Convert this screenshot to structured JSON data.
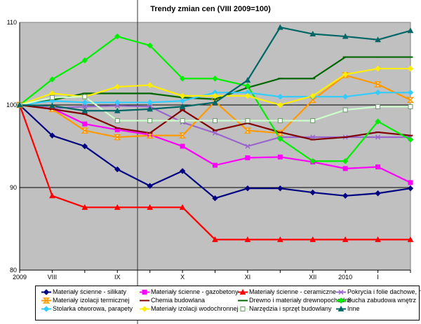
{
  "chart_data": {
    "type": "line",
    "title": "Trendy zmian cen (VIII 2009=100)",
    "xlabel": "",
    "ylabel": "",
    "ylim": [
      80,
      110
    ],
    "yticks": [
      80,
      90,
      100,
      110
    ],
    "grid": "horizontal",
    "x_tick_labels": [
      {
        "label": "2009",
        "at": 0
      },
      {
        "label": "VIII",
        "at": 1
      },
      {
        "label": "IX",
        "at": 3
      },
      {
        "label": "X",
        "at": 5
      },
      {
        "label": "XI",
        "at": 7
      },
      {
        "label": "XII",
        "at": 9
      },
      {
        "label": "2010",
        "at": 10
      },
      {
        "label": "I",
        "at": 11
      }
    ],
    "n_points": 13,
    "series": [
      {
        "name": "Materiały ścienne - silikaty",
        "color": "#000080",
        "marker": "diamond",
        "values": [
          100,
          96.3,
          95.0,
          92.2,
          90.2,
          92.0,
          88.7,
          89.9,
          89.9,
          89.4,
          89.0,
          89.3,
          89.9
        ]
      },
      {
        "name": "Materiały ścienne - gazobetony",
        "color": "#ff00ff",
        "marker": "square",
        "values": [
          100,
          99.6,
          97.7,
          97.0,
          96.4,
          95.0,
          92.7,
          93.6,
          93.7,
          93.1,
          92.3,
          92.5,
          90.6
        ]
      },
      {
        "name": "Materiały ścienne - ceramiczne",
        "color": "#ff0000",
        "marker": "triangle",
        "values": [
          100,
          89.0,
          87.6,
          87.6,
          87.6,
          87.6,
          83.7,
          83.7,
          83.7,
          83.7,
          83.7,
          83.7,
          83.7
        ]
      },
      {
        "name": "Pokrycia i folie dachowe, rynny",
        "color": "#9966cc",
        "marker": "x",
        "values": [
          100,
          99.6,
          99.8,
          99.9,
          99.8,
          97.9,
          96.6,
          95.0,
          96.1,
          96.1,
          96.1,
          96.1,
          96.1
        ]
      },
      {
        "name": "Materiały izolacji termicznej",
        "color": "#ff9900",
        "marker": "hourglass",
        "values": [
          100,
          99.5,
          96.9,
          96.1,
          96.3,
          96.3,
          100.4,
          96.9,
          96.6,
          100.6,
          103.6,
          102.5,
          100.6
        ]
      },
      {
        "name": "Chemia budowlana",
        "color": "#800000",
        "marker": "dash",
        "values": [
          100,
          99.5,
          98.9,
          97.2,
          96.6,
          99.4,
          96.9,
          97.8,
          96.7,
          95.8,
          96.1,
          96.7,
          96.3
        ]
      },
      {
        "name": "Drewno i materiały drewnopochodne",
        "color": "#006600",
        "marker": "dash",
        "values": [
          100,
          100.6,
          101.4,
          101.4,
          101.4,
          100.9,
          100.7,
          102.1,
          103.2,
          103.2,
          105.8,
          105.8,
          105.8
        ]
      },
      {
        "name": "Sucha zabudowa wnętrz",
        "color": "#00ee00",
        "marker": "diamond",
        "values": [
          100,
          103.1,
          105.4,
          108.3,
          107.2,
          103.2,
          103.2,
          102.3,
          95.9,
          93.2,
          93.2,
          98.0,
          95.8
        ]
      },
      {
        "name": "Stolarka otworowa, parapety",
        "color": "#33ccff",
        "marker": "diamond",
        "values": [
          100,
          100.5,
          100.3,
          100.3,
          100.3,
          100.5,
          101.5,
          101.5,
          101.0,
          101.0,
          101.0,
          101.5,
          101.5
        ]
      },
      {
        "name": "Materiały izolacji wodochronnej",
        "color": "#ffee00",
        "marker": "diamond",
        "values": [
          100,
          101.4,
          101.0,
          102.2,
          102.4,
          101.1,
          101.1,
          101.1,
          100.0,
          101.1,
          103.7,
          104.4,
          104.4
        ]
      },
      {
        "name": "Narzędzia i sprzęt budowlany",
        "color": "#ccffcc",
        "marker": "square",
        "values": [
          100,
          100.9,
          101.0,
          98.1,
          98.1,
          98.1,
          98.1,
          98.1,
          98.1,
          98.1,
          99.4,
          99.8,
          99.8
        ]
      },
      {
        "name": "Inne",
        "color": "#006666",
        "marker": "triangle",
        "values": [
          100,
          99.9,
          99.3,
          99.3,
          99.5,
          99.8,
          100.3,
          103.0,
          109.4,
          108.6,
          108.3,
          107.9,
          109.0
        ]
      }
    ]
  }
}
